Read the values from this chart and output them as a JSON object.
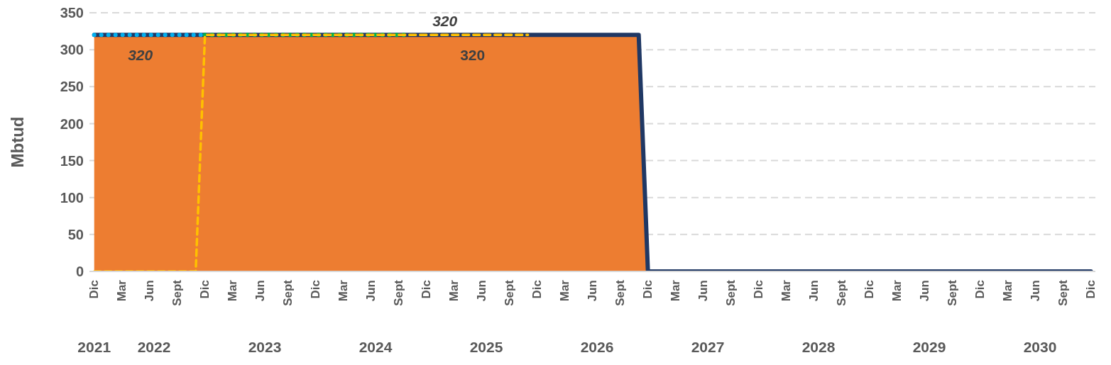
{
  "chart_data": {
    "type": "line",
    "ylabel": "Mbtud",
    "xlim": [
      "2021-11-16",
      "2030-12-16"
    ],
    "xticks": [
      {
        "value": "2021-12",
        "label": "Dic"
      },
      {
        "value": "2022-03",
        "label": "Mar"
      },
      {
        "value": "2022-06",
        "label": "Jun"
      },
      {
        "value": "2022-09",
        "label": "Sept"
      },
      {
        "value": "2022-12",
        "label": "Dic"
      },
      {
        "value": "2023-03",
        "label": "Mar"
      },
      {
        "value": "2023-06",
        "label": "Jun"
      },
      {
        "value": "2023-09",
        "label": "Sept"
      },
      {
        "value": "2023-12",
        "label": "Dic"
      },
      {
        "value": "2024-03",
        "label": "Mar"
      },
      {
        "value": "2024-06",
        "label": "Jun"
      },
      {
        "value": "2024-09",
        "label": "Sept"
      },
      {
        "value": "2024-12",
        "label": "Dic"
      },
      {
        "value": "2025-03",
        "label": "Mar"
      },
      {
        "value": "2025-06",
        "label": "Jun"
      },
      {
        "value": "2025-09",
        "label": "Sept"
      },
      {
        "value": "2025-12",
        "label": "Dic"
      },
      {
        "value": "2026-03",
        "label": "Mar"
      },
      {
        "value": "2026-06",
        "label": "Jun"
      },
      {
        "value": "2026-09",
        "label": "Sept"
      },
      {
        "value": "2026-12",
        "label": "Dic"
      },
      {
        "value": "2027-03",
        "label": "Mar"
      },
      {
        "value": "2027-06",
        "label": "Jun"
      },
      {
        "value": "2027-09",
        "label": "Sept"
      },
      {
        "value": "2027-12",
        "label": "Dic"
      },
      {
        "value": "2028-03",
        "label": "Mar"
      },
      {
        "value": "2028-06",
        "label": "Jun"
      },
      {
        "value": "2028-09",
        "label": "Sept"
      },
      {
        "value": "2028-12",
        "label": "Dic"
      },
      {
        "value": "2029-03",
        "label": "Mar"
      },
      {
        "value": "2029-06",
        "label": "Jun"
      },
      {
        "value": "2029-09",
        "label": "Sept"
      },
      {
        "value": "2029-12",
        "label": "Dic"
      },
      {
        "value": "2030-03",
        "label": "Mar"
      },
      {
        "value": "2030-06",
        "label": "Jun"
      },
      {
        "value": "2030-09",
        "label": "Sept"
      },
      {
        "value": "2030-12",
        "label": "Dic"
      }
    ],
    "x2lim": [
      "2021-11-16",
      "2030-12-16"
    ],
    "x2ticks": [
      {
        "value": "2021-12",
        "label": "2021"
      },
      {
        "value": "2022-06-16",
        "label": "2022"
      },
      {
        "value": "2023-06-16",
        "label": "2023"
      },
      {
        "value": "2024-06-16",
        "label": "2024"
      },
      {
        "value": "2025-06-16",
        "label": "2025"
      },
      {
        "value": "2026-06-16",
        "label": "2026"
      },
      {
        "value": "2027-06-16",
        "label": "2027"
      },
      {
        "value": "2028-06-16",
        "label": "2028"
      },
      {
        "value": "2029-06-16",
        "label": "2029"
      },
      {
        "value": "2030-06-16",
        "label": "2030"
      }
    ],
    "ylim": [
      0,
      350
    ],
    "yticks": [
      0,
      50,
      100,
      150,
      200,
      250,
      300,
      350
    ],
    "grid": "y",
    "legend": false,
    "series": [
      {
        "type": "area",
        "color": "#ed7d31",
        "x": [
          "2021-12",
          "2025-05",
          "2026-11",
          "2026-12"
        ],
        "values": [
          320,
          320,
          320,
          0
        ],
        "value_labels": [
          null,
          "320",
          null,
          null
        ]
      },
      {
        "color": "#203864",
        "line_style": "solid",
        "x": [
          "2021-12",
          "2026-11",
          "2026-12",
          "2030-12"
        ],
        "values": [
          320,
          320,
          0,
          0
        ]
      },
      {
        "color": "#00b0f0",
        "line_style": "dotted",
        "x": [
          "2021-12",
          "2022-05",
          "2022-12"
        ],
        "values": [
          320,
          320,
          320
        ],
        "value_labels": [
          null,
          "320",
          null
        ]
      },
      {
        "color": "#00b050",
        "line_style": "dotted",
        "x": [
          "2022-12",
          "2024-10"
        ],
        "values": [
          320,
          320
        ]
      },
      {
        "color": "#ffc000",
        "line_style": "dashed",
        "x": [
          "2021-12",
          "2022-11",
          "2022-12",
          "2025-02",
          "2025-11"
        ],
        "values": [
          0,
          0,
          320,
          320,
          320
        ],
        "value_labels": [
          null,
          null,
          null,
          "320",
          null
        ]
      }
    ]
  }
}
